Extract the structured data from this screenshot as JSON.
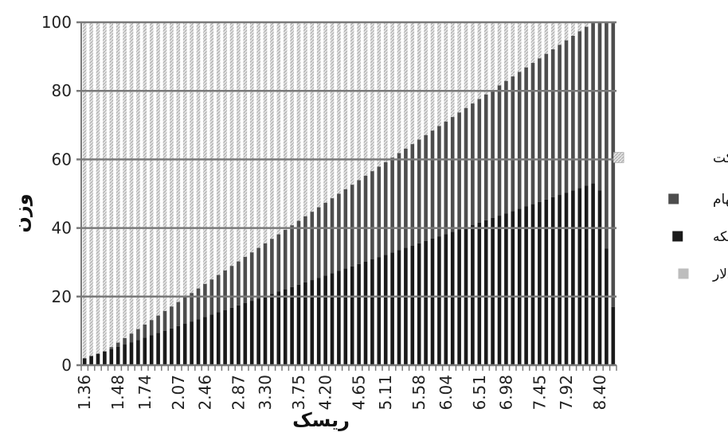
{
  "chart_data": {
    "type": "bar",
    "stacked": true,
    "xlabel": "ریسک",
    "ylabel": "وزن",
    "ylim": [
      0,
      100
    ],
    "y_ticks": [
      0,
      20,
      40,
      60,
      80,
      100
    ],
    "x_tick_labels": [
      "1.36",
      "1.48",
      "1.74",
      "2.07",
      "2.46",
      "2.87",
      "3.30",
      "3.75",
      "4.20",
      "4.65",
      "5.11",
      "5.58",
      "6.04",
      "6.51",
      "6.98",
      "7.45",
      "7.92",
      "8.40"
    ],
    "grid": true,
    "legend_position": "right",
    "n_bars": 80,
    "series": [
      {
        "name": "اوراق مشارکت",
        "color": "#c8c8c8",
        "pattern": "hatched",
        "description": "fills remainder above the other series up to 100"
      },
      {
        "name": "سهام",
        "color": "#4d4d4d",
        "ramp": {
          "start": 0,
          "end": 100,
          "end_at_tick": "8.40"
        }
      },
      {
        "name": "سکه",
        "color": "#1a1a1a",
        "ramp": {
          "start": 2,
          "end": 53,
          "end_at_tick": "8.40"
        },
        "tail": [
          51,
          34,
          17
        ]
      },
      {
        "name": "دلار",
        "color": "#bdbdbd"
      }
    ]
  }
}
